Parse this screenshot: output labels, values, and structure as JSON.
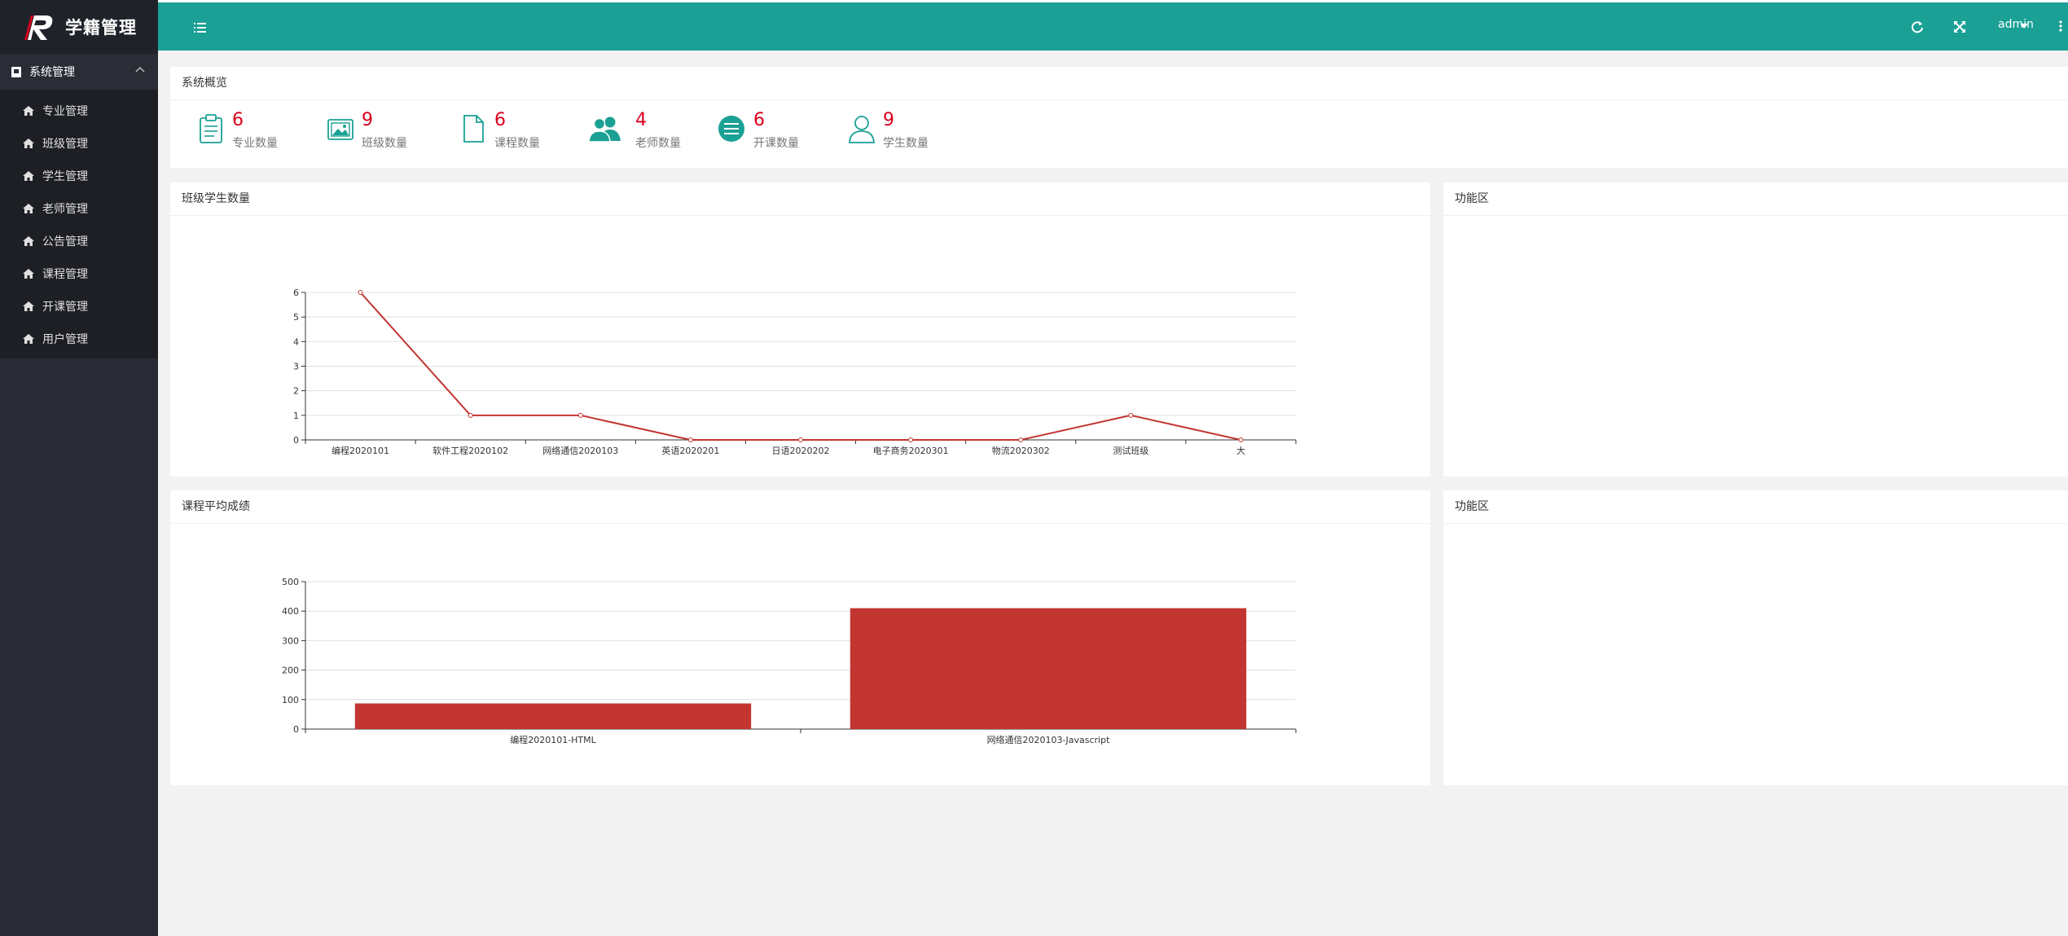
{
  "app": {
    "title": "学籍管理"
  },
  "sidebar": {
    "group_label": "系统管理",
    "items": [
      {
        "label": "专业管理"
      },
      {
        "label": "班级管理"
      },
      {
        "label": "学生管理"
      },
      {
        "label": "老师管理"
      },
      {
        "label": "公告管理"
      },
      {
        "label": "课程管理"
      },
      {
        "label": "开课管理"
      },
      {
        "label": "用户管理"
      }
    ]
  },
  "header": {
    "user": "admin"
  },
  "overview": {
    "title": "系统概览",
    "stats": [
      {
        "value": "6",
        "label": "专业数量",
        "icon": "clipboard-icon"
      },
      {
        "value": "9",
        "label": "班级数量",
        "icon": "image-icon"
      },
      {
        "value": "6",
        "label": "课程数量",
        "icon": "file-icon"
      },
      {
        "value": "4",
        "label": "老师数量",
        "icon": "users-icon"
      },
      {
        "value": "6",
        "label": "开课数量",
        "icon": "list-circle-icon"
      },
      {
        "value": "9",
        "label": "学生数量",
        "icon": "user-icon"
      }
    ]
  },
  "panels": {
    "class_students_title": "班级学生数量",
    "function_area_1": "功能区",
    "course_avg_title": "课程平均成绩",
    "function_area_2": "功能区"
  },
  "colors": {
    "accent": "#1aa094",
    "series": "#c23531",
    "stat_number": "#d9001b"
  },
  "chart_data": [
    {
      "type": "line",
      "title": "班级学生数量",
      "categories": [
        "编程2020101",
        "软件工程2020102",
        "网络通信2020103",
        "英语2020201",
        "日语2020202",
        "电子商务2020301",
        "物流2020302",
        "测试班级",
        "大"
      ],
      "values": [
        6,
        1,
        1,
        0,
        0,
        0,
        0,
        1,
        0
      ],
      "ylim": [
        0,
        6
      ],
      "yticks": [
        0,
        1,
        2,
        3,
        4,
        5,
        6
      ],
      "grid": true
    },
    {
      "type": "bar",
      "title": "课程平均成绩",
      "categories": [
        "编程2020101-HTML",
        "网络通信2020103-Javascript"
      ],
      "values": [
        87,
        410
      ],
      "ylim": [
        0,
        500
      ],
      "yticks": [
        0,
        100,
        200,
        300,
        400,
        500
      ],
      "grid": true
    }
  ]
}
